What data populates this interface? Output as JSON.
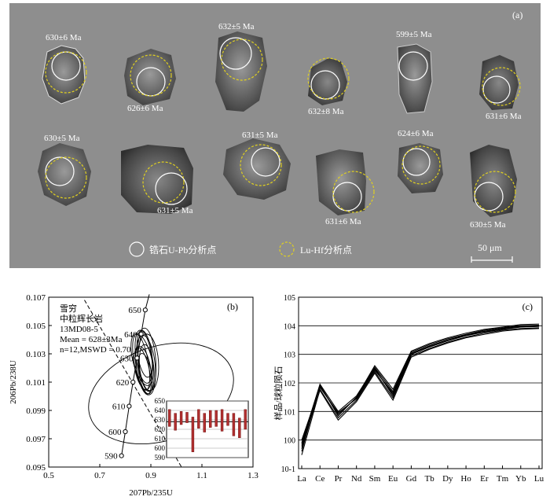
{
  "panel_a": {
    "label": "(a)",
    "ages": [
      "630±6 Ma",
      "626±6 Ma",
      "632±5 Ma",
      "632±8 Ma",
      "599±5 Ma",
      "631±6 Ma",
      "630±5 Ma",
      "631±5 Ma",
      "631±5 Ma",
      "631±6 Ma",
      "624±6 Ma",
      "630±5 Ma"
    ],
    "legend_upb": "锆石U-Pb分析点",
    "legend_luhf": "Lu-Hf分析点",
    "scale_bar": "50 μm",
    "colors": {
      "background": "#8e8e8e",
      "upb_circle": "#ffffff",
      "luhf_circle": "#e0d020"
    }
  },
  "panel_b": {
    "label": "(b)",
    "annotation": [
      "雪穷",
      "中粒辉长岩",
      "13MD08-5",
      "Mean = 628±3Ma",
      "n=12,MSWD = 0.70"
    ],
    "ylabel": "206Pb/238U",
    "xlabel": "207Pb/235U",
    "chart_data": {
      "type": "scatter",
      "xlim": [
        0.5,
        1.3
      ],
      "ylim": [
        0.095,
        0.107
      ],
      "x_ticks": [
        "0.5",
        "0.7",
        "0.9",
        "1.1",
        "1.3"
      ],
      "y_ticks": [
        "0.095",
        "0.097",
        "0.099",
        "0.101",
        "0.103",
        "0.105",
        "0.107"
      ],
      "concordia_labels": [
        "590",
        "600",
        "610",
        "620",
        "630",
        "640",
        "650"
      ],
      "inset": {
        "yticks": [
          "650",
          "640",
          "630",
          "620",
          "610",
          "600",
          "590"
        ],
        "bars": [
          [
            623,
            641
          ],
          [
            619,
            637
          ],
          [
            625,
            639
          ],
          [
            627,
            638
          ],
          [
            596,
            633
          ],
          [
            621,
            641
          ],
          [
            617,
            637
          ],
          [
            622,
            640
          ],
          [
            623,
            640
          ],
          [
            618,
            641
          ],
          [
            624,
            637
          ],
          [
            613,
            637
          ],
          [
            611,
            632
          ],
          [
            620,
            641
          ]
        ]
      }
    }
  },
  "panel_c": {
    "label": "(c)",
    "ylabel": "样品/球粒陨石",
    "chart_data": {
      "type": "line",
      "categories": [
        "La",
        "Ce",
        "Pr",
        "Nd",
        "Sm",
        "Eu",
        "Gd",
        "Tb",
        "Dy",
        "Ho",
        "Er",
        "Tm",
        "Yb",
        "Lu"
      ],
      "y_scale": "log",
      "ylim": [
        0.1,
        100000
      ],
      "y_ticks": [
        "10-1",
        "100",
        "101",
        "102",
        "103",
        "104",
        "105"
      ],
      "series": [
        {
          "values": [
            0.5,
            80,
            8,
            30,
            300,
            40,
            1000,
            1800,
            3000,
            4500,
            6000,
            7500,
            9000,
            9500
          ]
        },
        {
          "values": [
            0.8,
            90,
            10,
            35,
            350,
            50,
            1200,
            2200,
            3500,
            5000,
            7000,
            8500,
            10000,
            10500
          ]
        },
        {
          "values": [
            0.3,
            60,
            6,
            25,
            250,
            30,
            900,
            1600,
            2700,
            4000,
            5500,
            7000,
            8000,
            8500
          ]
        },
        {
          "values": [
            1,
            70,
            9,
            28,
            280,
            45,
            1100,
            2000,
            3200,
            4800,
            6500,
            8000,
            9500,
            10000
          ]
        },
        {
          "values": [
            0.6,
            55,
            5,
            22,
            220,
            25,
            800,
            1500,
            2500,
            3800,
            5000,
            6500,
            7500,
            8000
          ]
        },
        {
          "values": [
            0.4,
            85,
            7,
            32,
            400,
            60,
            1300,
            2400,
            3800,
            5500,
            7500,
            9000,
            11000,
            11500
          ]
        },
        {
          "values": [
            0.7,
            75,
            8,
            30,
            330,
            35,
            1050,
            1900,
            3100,
            4600,
            6200,
            7800,
            9200,
            9700
          ]
        }
      ]
    }
  }
}
